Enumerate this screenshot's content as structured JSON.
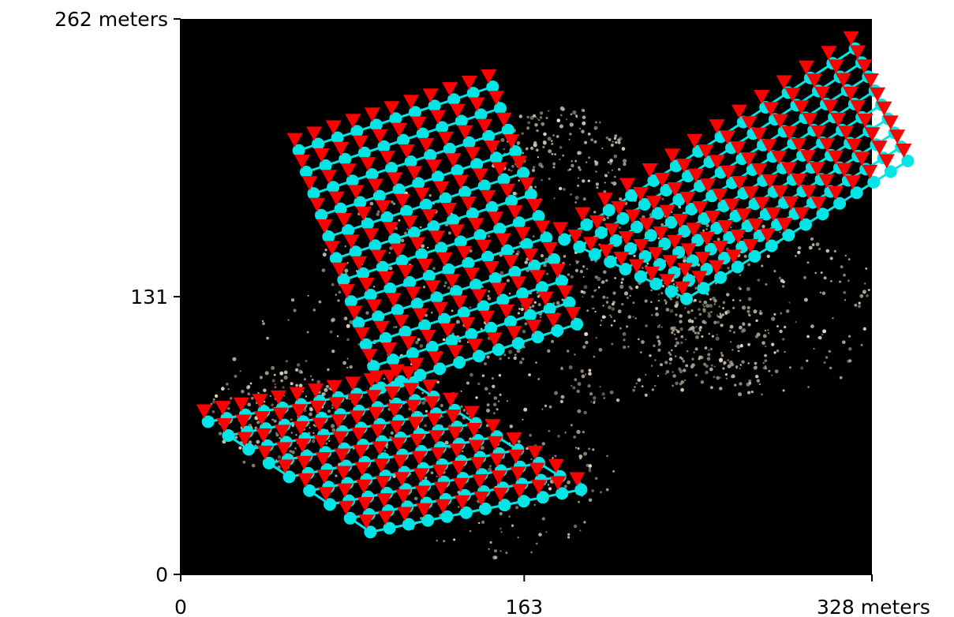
{
  "chart_data": {
    "type": "scatter",
    "title": "",
    "xlabel": "",
    "ylabel": "",
    "xlim": [
      0,
      328
    ],
    "ylim": [
      0,
      262
    ],
    "x_ticks": [
      {
        "value": 0,
        "label": "0"
      },
      {
        "value": 163,
        "label": "163"
      },
      {
        "value": 328,
        "label": "328 meters"
      }
    ],
    "y_ticks": [
      {
        "value": 0,
        "label": "0"
      },
      {
        "value": 131,
        "label": "131"
      },
      {
        "value": 262,
        "label": "262 meters"
      }
    ],
    "background": "aerial map imagery (dark, with scattered light building points)",
    "grid": false,
    "legend": "none",
    "colors": {
      "path": "#00e5e5",
      "marker_triangle": "#ff0000",
      "background": "#000000"
    },
    "series": [
      {
        "marker": "circle",
        "color": "#00e5e5",
        "connected": true,
        "description": "cyan flight-path waypoints covering three overlapping rectangular survey grids",
        "grids": [
          {
            "corners": [
              [
                56,
                200
              ],
              [
                148,
                230
              ],
              [
                188,
                118
              ],
              [
                95,
                88
              ]
            ],
            "rows": 12,
            "cols": 11
          },
          {
            "corners": [
              [
                182,
                158
              ],
              [
                320,
                248
              ],
              [
                345,
                195
              ],
              [
                240,
                130
              ]
            ],
            "rows": 9,
            "cols": 14
          },
          {
            "corners": [
              [
                13,
                72
              ],
              [
                110,
                90
              ],
              [
                190,
                40
              ],
              [
                90,
                20
              ]
            ],
            "rows": 9,
            "cols": 12
          }
        ]
      },
      {
        "marker": "triangle-down",
        "color": "#ff0000",
        "connected": false,
        "description": "red downward triangles at each survey waypoint"
      }
    ]
  }
}
